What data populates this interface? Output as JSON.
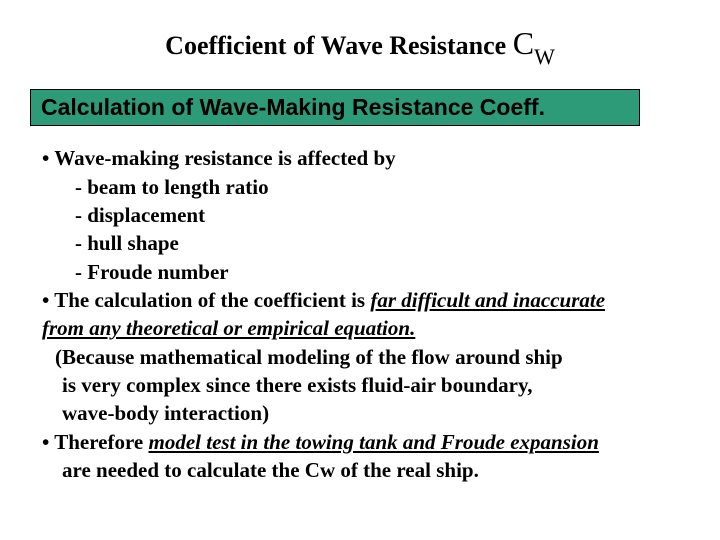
{
  "title": {
    "main": "Coefficient of Wave Resistance ",
    "symbol": "C",
    "subscript": "W"
  },
  "banner": {
    "text": "Calculation of Wave-Making Resistance Coeff."
  },
  "body": {
    "l1": "• Wave-making resistance is affected by",
    "l2": "- beam to length ratio",
    "l3": "- displacement",
    "l4": "- hull shape",
    "l5": "- Froude number",
    "l6a": "• The calculation of the coefficient is ",
    "l6b": "far difficult and inaccurate",
    "l7a": "   ",
    "l7b": "from any theoretical or empirical equation.",
    "l8": "(Because mathematical modeling of the flow around ship",
    "l9": "is very complex since there exists fluid-air boundary,",
    "l10": "wave-body interaction)",
    "l11a": "• Therefore ",
    "l11b": "model test in the towing tank and Froude expansion",
    "l12": "are needed to calculate the Cw of the real ship."
  },
  "style": {
    "background": "#ffffff",
    "text_color": "#000000",
    "banner_bg": "#2e9b78",
    "banner_border": "#000000",
    "title_fontsize": 26,
    "symbol_fontsize": 32,
    "banner_fontsize": 23,
    "body_fontsize": 21
  }
}
